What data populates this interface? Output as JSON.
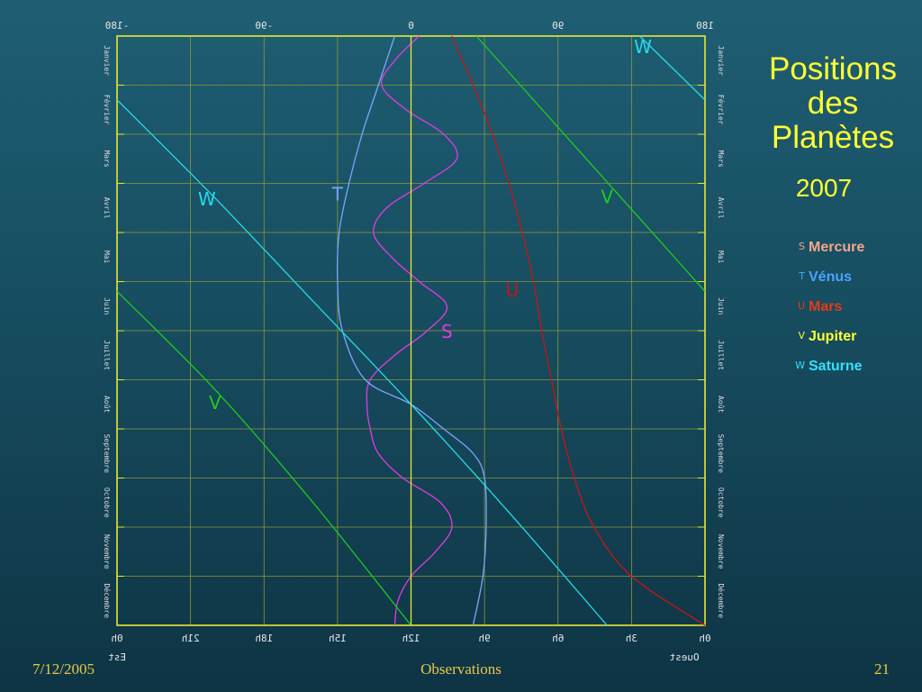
{
  "title_lines": [
    "Positions",
    "des",
    "Planètes"
  ],
  "year": "2007",
  "legend": [
    {
      "symbol": "S",
      "name": "Mercure",
      "color": "#f5a58c"
    },
    {
      "symbol": "T",
      "name": "Vénus",
      "color": "#4aa3ff"
    },
    {
      "symbol": "U",
      "name": "Mars",
      "color": "#e23a1a"
    },
    {
      "symbol": "V",
      "name": "Jupiter",
      "color": "#ffff33"
    },
    {
      "symbol": "W",
      "name": "Saturne",
      "color": "#33e0ff"
    }
  ],
  "footer": {
    "date": "7/12/2005",
    "center": "Observations",
    "page": "21"
  },
  "chart_data": {
    "type": "line",
    "xlim": [
      -180,
      180
    ],
    "x_label_left": "Est",
    "x_label_right": "Ouest",
    "top_ticks": [
      {
        "value": -180,
        "label": "-180"
      },
      {
        "value": -90,
        "label": "-90"
      },
      {
        "value": 0,
        "label": "0"
      },
      {
        "value": 90,
        "label": "90"
      },
      {
        "value": 180,
        "label": "180"
      }
    ],
    "bottom_ticks": [
      {
        "value": -180,
        "label": "0h"
      },
      {
        "value": -135,
        "label": "21h"
      },
      {
        "value": -90,
        "label": "18h"
      },
      {
        "value": -45,
        "label": "15h"
      },
      {
        "value": 0,
        "label": "12h"
      },
      {
        "value": 45,
        "label": "9h"
      },
      {
        "value": 90,
        "label": "6h"
      },
      {
        "value": 135,
        "label": "3h"
      },
      {
        "value": 180,
        "label": "0h"
      }
    ],
    "months": [
      "Janvier",
      "Février",
      "Mars",
      "Avril",
      "Mai",
      "Juin",
      "Juillet",
      "Août",
      "Septembre",
      "Octobre",
      "Novembre",
      "Décembre"
    ],
    "series": [
      {
        "symbol": "S",
        "color": "#e23ae2",
        "points": [
          [
            5,
            0
          ],
          [
            -10,
            0.5
          ],
          [
            -18,
            1
          ],
          [
            -3,
            1.5
          ],
          [
            20,
            2
          ],
          [
            28,
            2.5
          ],
          [
            8,
            3
          ],
          [
            -15,
            3.5
          ],
          [
            -23,
            4
          ],
          [
            -12,
            4.5
          ],
          [
            5,
            5
          ],
          [
            22,
            5.5
          ],
          [
            10,
            6
          ],
          [
            -10,
            6.5
          ],
          [
            -25,
            7
          ],
          [
            -27,
            7.5
          ],
          [
            -25,
            8
          ],
          [
            -20,
            8.5
          ],
          [
            -5,
            9
          ],
          [
            18,
            9.5
          ],
          [
            25,
            10
          ],
          [
            15,
            10.5
          ],
          [
            0,
            11
          ],
          [
            -8,
            11.5
          ],
          [
            -10,
            12
          ]
        ],
        "labels": [
          {
            "x": 22,
            "month": 6.15
          }
        ]
      },
      {
        "symbol": "T",
        "color": "#7aa6ff",
        "points": [
          [
            -10,
            0
          ],
          [
            -20,
            1
          ],
          [
            -30,
            2
          ],
          [
            -38,
            3
          ],
          [
            -44,
            4
          ],
          [
            -45,
            5
          ],
          [
            -42,
            6
          ],
          [
            -28,
            7
          ],
          [
            0,
            7.5
          ],
          [
            20,
            8
          ],
          [
            38,
            8.5
          ],
          [
            45,
            9
          ],
          [
            46,
            10
          ],
          [
            44,
            11
          ],
          [
            38,
            12
          ]
        ],
        "labels": [
          {
            "x": -45,
            "month": 3.35
          }
        ]
      },
      {
        "symbol": "U",
        "color": "#c81414",
        "points": [
          [
            25,
            0
          ],
          [
            38,
            1
          ],
          [
            50,
            2
          ],
          [
            60,
            3
          ],
          [
            68,
            4
          ],
          [
            75,
            5
          ],
          [
            80,
            6
          ],
          [
            86,
            7
          ],
          [
            92,
            8
          ],
          [
            100,
            9
          ],
          [
            112,
            10
          ],
          [
            135,
            11
          ],
          [
            180,
            12
          ]
        ],
        "labels": [
          {
            "x": 62,
            "month": 5.3
          }
        ]
      },
      {
        "symbol": "V",
        "color": "#1ecc1e",
        "segments": [
          [
            [
              40,
              0
            ],
            [
              180,
              5.2
            ]
          ],
          [
            [
              -180,
              5.2
            ],
            [
              -120,
              7.2
            ],
            [
              -60,
              9.5
            ],
            [
              0,
              12
            ]
          ]
        ],
        "labels": [
          {
            "x": 120,
            "month": 3.4
          },
          {
            "x": -120,
            "month": 7.6
          }
        ]
      },
      {
        "symbol": "W",
        "color": "#22dbe8",
        "segments": [
          [
            [
              140,
              0
            ],
            [
              180,
              1.3
            ]
          ],
          [
            [
              -180,
              1.3
            ],
            [
              -120,
              3.3
            ],
            [
              -60,
              5.4
            ],
            [
              0,
              7.5
            ],
            [
              60,
              9.7
            ],
            [
              120,
              12
            ]
          ]
        ],
        "labels": [
          {
            "x": 142,
            "month": 0.35
          },
          {
            "x": -125,
            "month": 3.45
          }
        ]
      },
      {
        "symbol": "",
        "color": "#e8e830",
        "segments": [
          [
            [
              0,
              0
            ],
            [
              0,
              12
            ]
          ]
        ],
        "labels": []
      }
    ]
  }
}
